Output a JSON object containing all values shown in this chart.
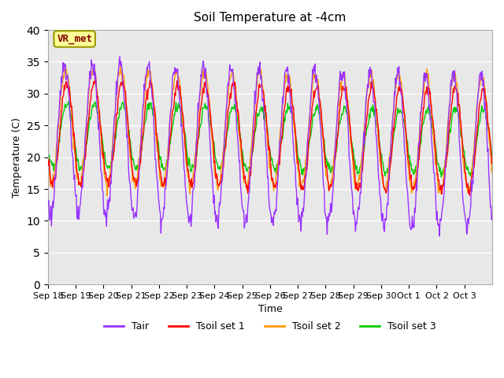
{
  "title": "Soil Temperature at -4cm",
  "xlabel": "Time",
  "ylabel": "Temperature (C)",
  "ylim": [
    0,
    40
  ],
  "days": 16,
  "fig_bg_color": "#ffffff",
  "plot_bg_color": "#e8e8e8",
  "grid_color": "#ffffff",
  "annotation_text": "VR_met",
  "annotation_bg": "#ffff99",
  "annotation_border": "#999900",
  "annotation_text_color": "#800000",
  "colors": {
    "Tair": "#9933ff",
    "Tsoil_set1": "#ff0000",
    "Tsoil_set2": "#ff9900",
    "Tsoil_set3": "#00cc00"
  },
  "legend_labels": [
    "Tair",
    "Tsoil set 1",
    "Tsoil set 2",
    "Tsoil set 3"
  ],
  "x_tick_labels": [
    "Sep 18",
    "Sep 19",
    "Sep 20",
    "Sep 21",
    "Sep 22",
    "Sep 23",
    "Sep 24",
    "Sep 25",
    "Sep 26",
    "Sep 27",
    "Sep 28",
    "Sep 29",
    "Sep 30",
    "Oct 1",
    "Oct 2",
    "Oct 3"
  ],
  "yticks": [
    0,
    5,
    10,
    15,
    20,
    25,
    30,
    35,
    40
  ],
  "tick_fontsize": 8.0
}
